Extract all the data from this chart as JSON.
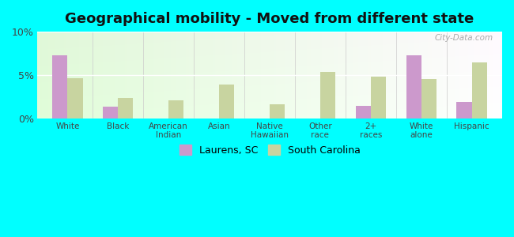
{
  "title": "Geographical mobility - Moved from different state",
  "categories": [
    "White",
    "Black",
    "American\nIndian",
    "Asian",
    "Native\nHawaiian",
    "Other\nrace",
    "2+\nraces",
    "White\nalone",
    "Hispanic"
  ],
  "laurens_values": [
    7.3,
    1.4,
    0.0,
    0.0,
    0.0,
    0.0,
    1.5,
    7.3,
    1.9
  ],
  "sc_values": [
    4.7,
    2.4,
    2.1,
    3.9,
    1.7,
    5.4,
    4.8,
    4.6,
    6.5
  ],
  "laurens_color": "#cc99cc",
  "sc_color": "#c8d4a0",
  "background_color": "#00ffff",
  "ylim": [
    0,
    10
  ],
  "yticks": [
    0,
    5,
    10
  ],
  "ytick_labels": [
    "0%",
    "5%",
    "10%"
  ],
  "title_fontsize": 13,
  "legend_laurens": "Laurens, SC",
  "legend_sc": "South Carolina",
  "bar_width": 0.3
}
